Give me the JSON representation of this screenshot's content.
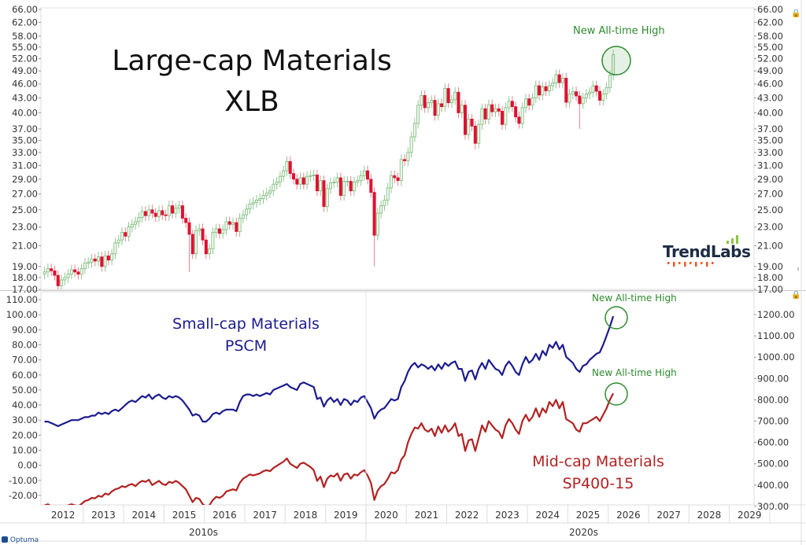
{
  "chart_data": [
    {
      "type": "candlestick",
      "title": "Large-cap Materials",
      "subtitle": "XLB",
      "scale": "log",
      "ylim": [
        17,
        66
      ],
      "yticks": [
        "66.00",
        "62.00",
        "58.00",
        "55.00",
        "52.00",
        "49.00",
        "46.00",
        "43.00",
        "40.00",
        "37.00",
        "35.00",
        "33.00",
        "31.00",
        "29.00",
        "27.00",
        "25.00",
        "23.00",
        "21.00",
        "19.00",
        "18.00",
        "17.00"
      ],
      "frequency": "monthly",
      "start": "2012-01",
      "closes": [
        18.5,
        18.8,
        18.6,
        18.2,
        17.3,
        17.8,
        18.0,
        18.3,
        18.7,
        18.5,
        18.3,
        18.8,
        19.3,
        19.4,
        19.7,
        19.5,
        19.9,
        19.0,
        20.0,
        19.6,
        20.2,
        21.3,
        21.6,
        22.4,
        22.0,
        23.0,
        23.3,
        23.6,
        24.1,
        24.8,
        24.3,
        25.0,
        24.6,
        24.2,
        24.9,
        24.4,
        24.3,
        25.5,
        24.6,
        25.2,
        25.5,
        24.0,
        23.5,
        22.2,
        20.2,
        22.6,
        22.8,
        21.6,
        20.2,
        20.7,
        22.4,
        22.8,
        22.3,
        22.7,
        23.6,
        23.3,
        23.5,
        22.5,
        24.0,
        24.4,
        25.1,
        25.7,
        25.9,
        26.2,
        26.4,
        26.8,
        27.1,
        27.4,
        28.3,
        28.6,
        29.4,
        30.2,
        31.6,
        29.8,
        29.0,
        28.3,
        29.2,
        28.3,
        29.4,
        29.5,
        29.6,
        27.4,
        28.8,
        25.4,
        27.7,
        28.5,
        28.6,
        29.2,
        26.8,
        28.7,
        28.7,
        27.4,
        28.6,
        28.8,
        29.5,
        30.2,
        29.0,
        27.2,
        22.1,
        24.6,
        25.5,
        26.2,
        27.8,
        29.5,
        29.2,
        28.8,
        31.9,
        31.7,
        33.0,
        35.6,
        38.0,
        41.5,
        43.5,
        41.0,
        42.0,
        42.5,
        39.5,
        41.8,
        41.2,
        45.0,
        42.0,
        42.6,
        44.2,
        40.0,
        41.5,
        36.0,
        38.8,
        37.5,
        34.5,
        37.8,
        40.8,
        38.8,
        41.6,
        40.2,
        40.8,
        40.3,
        37.8,
        41.0,
        42.3,
        41.2,
        39.2,
        38.0,
        41.0,
        42.8,
        41.5,
        43.0,
        45.6,
        43.6,
        45.4,
        44.5,
        45.6,
        46.2,
        48.1,
        46.3,
        47.3,
        42.1,
        43.8,
        44.3,
        43.4,
        41.8,
        43.0,
        43.8,
        44.2,
        45.6,
        44.4,
        42.5,
        43.8,
        45.2,
        48.0,
        53.0
      ],
      "notable_lows": {
        "2015-08": 18.5,
        "2020-03": 19.0,
        "2022-09": 33.5,
        "2025-04": 37.0
      },
      "up_color": "#2e9b2e",
      "down_color": "#e0102f",
      "annotation": "New All-time High"
    },
    {
      "type": "line",
      "frequency": "monthly",
      "start": "2012-01",
      "left_axis": {
        "ylim": [
          -25,
          115
        ],
        "yticks": [
          "110.00",
          "100.00",
          "90.00",
          "80.00",
          "70.00",
          "60.00",
          "50.00",
          "40.00",
          "30.00",
          "20.00",
          "10.00",
          "0.00",
          "-10.00",
          "-20.00"
        ]
      },
      "right_axis": {
        "ylim": [
          290,
          1225
        ],
        "yticks": [
          "1200.00",
          "1100.00",
          "1000.00",
          "900.00",
          "800.00",
          "700.00",
          "600.00",
          "500.00",
          "400.00",
          "300.00"
        ]
      },
      "series": [
        {
          "name": "Small-cap Materials",
          "ticker": "PSCM",
          "axis": "left",
          "color": "#1b1b8f",
          "values": [
            29,
            29,
            28,
            27,
            26,
            27,
            28,
            29,
            30,
            30,
            30,
            31,
            32,
            32,
            33,
            33,
            35,
            34,
            35,
            34,
            36,
            37,
            36,
            38,
            40,
            42,
            43,
            42,
            44,
            46,
            45,
            47,
            44,
            46,
            47,
            45,
            44,
            46,
            45,
            46,
            45,
            43,
            40,
            37,
            33,
            34,
            33,
            29,
            29,
            31,
            34,
            35,
            34,
            36,
            37,
            37,
            37,
            36,
            42,
            46,
            47,
            47,
            46,
            47,
            46,
            47,
            48,
            47,
            50,
            51,
            52,
            53,
            54,
            52,
            51,
            50,
            54,
            55,
            54,
            53,
            52,
            44,
            45,
            39,
            43,
            45,
            42,
            44,
            40,
            44,
            43,
            40,
            43,
            42,
            45,
            46,
            42,
            38,
            31,
            35,
            37,
            38,
            41,
            44,
            43,
            44,
            52,
            56,
            62,
            66,
            68,
            65,
            67,
            66,
            64,
            66,
            63,
            67,
            64,
            68,
            66,
            68,
            69,
            64,
            64,
            56,
            62,
            63,
            57,
            64,
            68,
            64,
            70,
            67,
            64,
            63,
            60,
            66,
            69,
            66,
            62,
            60,
            67,
            72,
            68,
            70,
            74,
            70,
            76,
            73,
            80,
            78,
            82,
            77,
            80,
            72,
            70,
            68,
            64,
            62,
            66,
            67,
            70,
            72,
            74,
            75,
            80,
            86,
            92,
            99
          ]
        },
        {
          "name": "Mid-cap Materials",
          "ticker": "SP400-15",
          "axis": "right",
          "color": "#b22222",
          "values": [
            305,
            310,
            300,
            295,
            285,
            290,
            298,
            305,
            310,
            305,
            300,
            312,
            325,
            330,
            340,
            338,
            350,
            345,
            360,
            355,
            370,
            380,
            385,
            395,
            390,
            400,
            405,
            395,
            410,
            420,
            415,
            425,
            400,
            410,
            420,
            405,
            400,
            415,
            410,
            420,
            410,
            395,
            380,
            350,
            320,
            340,
            335,
            310,
            300,
            305,
            330,
            345,
            340,
            350,
            370,
            375,
            380,
            375,
            410,
            430,
            440,
            450,
            445,
            450,
            455,
            465,
            470,
            465,
            480,
            490,
            500,
            510,
            525,
            500,
            490,
            480,
            500,
            505,
            495,
            485,
            470,
            420,
            440,
            390,
            430,
            445,
            440,
            455,
            420,
            450,
            455,
            430,
            450,
            445,
            460,
            470,
            445,
            410,
            330,
            375,
            395,
            405,
            430,
            460,
            455,
            470,
            520,
            540,
            600,
            640,
            670,
            665,
            690,
            660,
            650,
            665,
            630,
            675,
            645,
            680,
            650,
            665,
            690,
            630,
            640,
            560,
            610,
            615,
            560,
            620,
            680,
            650,
            700,
            680,
            660,
            650,
            620,
            680,
            710,
            690,
            660,
            640,
            700,
            730,
            700,
            720,
            760,
            720,
            760,
            740,
            790,
            770,
            800,
            760,
            790,
            710,
            700,
            690,
            660,
            650,
            690,
            690,
            700,
            710,
            720,
            700,
            730,
            760,
            800,
            830
          ]
        }
      ],
      "annotations": [
        "New All-time High",
        "New All-time High"
      ],
      "annotation_color": "#2e8b2e"
    }
  ],
  "x_axis": {
    "years": [
      "2012",
      "2013",
      "2014",
      "2015",
      "2016",
      "2017",
      "2018",
      "2019",
      "2020",
      "2021",
      "2022",
      "2023",
      "2024",
      "2025",
      "2026",
      "2027",
      "2028",
      "2029"
    ],
    "decades": [
      "2010s",
      "2020s"
    ]
  },
  "branding": {
    "logo_text": "TrendLabs",
    "footer_logo": "Optuma"
  }
}
